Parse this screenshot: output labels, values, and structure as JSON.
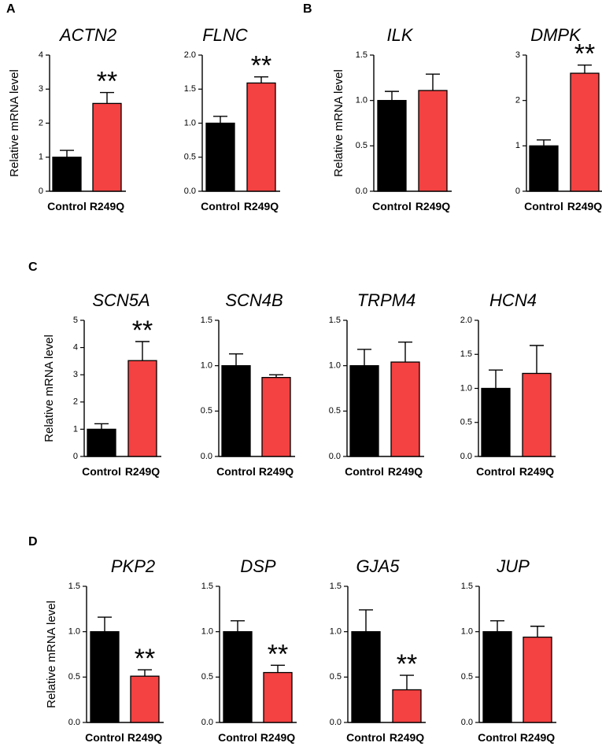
{
  "colors": {
    "control": "#000000",
    "r249q": "#f44141",
    "axis": "#000000"
  },
  "panels": [
    "A",
    "B",
    "C",
    "D"
  ],
  "ylabel": "Relative mRNA level",
  "chart_data": [
    {
      "type": "bar",
      "panel": "A",
      "title": "ACTN2",
      "categories": [
        "Control",
        "R249Q"
      ],
      "values": [
        1.0,
        2.58
      ],
      "errors": [
        0.2,
        0.32
      ],
      "ylim": [
        0,
        4
      ],
      "yticks": [
        "0",
        "1",
        "2",
        "3",
        "4"
      ],
      "ylabel": "Relative mRNA level",
      "significance": [
        "",
        "**"
      ]
    },
    {
      "type": "bar",
      "panel": "A",
      "title": "FLNC",
      "categories": [
        "Control",
        "R249Q"
      ],
      "values": [
        1.0,
        1.59
      ],
      "errors": [
        0.1,
        0.09
      ],
      "ylim": [
        0,
        2
      ],
      "yticks": [
        "0.0",
        "0.5",
        "1.0",
        "1.5",
        "2.0"
      ],
      "ylabel": "",
      "significance": [
        "",
        "**"
      ]
    },
    {
      "type": "bar",
      "panel": "B",
      "title": "ILK",
      "categories": [
        "Control",
        "R249Q"
      ],
      "values": [
        1.0,
        1.11
      ],
      "errors": [
        0.1,
        0.18
      ],
      "ylim": [
        0,
        1.5
      ],
      "yticks": [
        "0.0",
        "0.5",
        "1.0",
        "1.5"
      ],
      "ylabel": "Relative mRNA level",
      "significance": [
        "",
        ""
      ]
    },
    {
      "type": "bar",
      "panel": "B",
      "title": "DMPK",
      "categories": [
        "Control",
        "R249Q"
      ],
      "values": [
        1.0,
        2.6
      ],
      "errors": [
        0.13,
        0.18
      ],
      "ylim": [
        0,
        3
      ],
      "yticks": [
        "0",
        "1",
        "2",
        "3"
      ],
      "ylabel": "",
      "significance": [
        "",
        "**"
      ]
    },
    {
      "type": "bar",
      "panel": "C",
      "title": "SCN5A",
      "categories": [
        "Control",
        "R249Q"
      ],
      "values": [
        1.0,
        3.52
      ],
      "errors": [
        0.2,
        0.7
      ],
      "ylim": [
        0,
        5
      ],
      "yticks": [
        "0",
        "1",
        "2",
        "3",
        "4",
        "5"
      ],
      "ylabel": "Relative mRNA level",
      "significance": [
        "",
        "**"
      ]
    },
    {
      "type": "bar",
      "panel": "C",
      "title": "SCN4B",
      "categories": [
        "Control",
        "R249Q"
      ],
      "values": [
        1.0,
        0.87
      ],
      "errors": [
        0.13,
        0.03
      ],
      "ylim": [
        0,
        1.5
      ],
      "yticks": [
        "0.0",
        "0.5",
        "1.0",
        "1.5"
      ],
      "ylabel": "",
      "significance": [
        "",
        ""
      ]
    },
    {
      "type": "bar",
      "panel": "C",
      "title": "TRPM4",
      "categories": [
        "Control",
        "R249Q"
      ],
      "values": [
        1.0,
        1.04
      ],
      "errors": [
        0.18,
        0.22
      ],
      "ylim": [
        0,
        1.5
      ],
      "yticks": [
        "0.0",
        "0.5",
        "1.0",
        "1.5"
      ],
      "ylabel": "",
      "significance": [
        "",
        ""
      ]
    },
    {
      "type": "bar",
      "panel": "C",
      "title": "HCN4",
      "categories": [
        "Control",
        "R249Q"
      ],
      "values": [
        1.0,
        1.22
      ],
      "errors": [
        0.27,
        0.41
      ],
      "ylim": [
        0,
        2
      ],
      "yticks": [
        "0.0",
        "0.5",
        "1.0",
        "1.5",
        "2.0"
      ],
      "ylabel": "",
      "significance": [
        "",
        ""
      ]
    },
    {
      "type": "bar",
      "panel": "D",
      "title": "PKP2",
      "categories": [
        "Control",
        "R249Q"
      ],
      "values": [
        1.0,
        0.51
      ],
      "errors": [
        0.16,
        0.07
      ],
      "ylim": [
        0,
        1.5
      ],
      "yticks": [
        "0.0",
        "0.5",
        "1.0",
        "1.5"
      ],
      "ylabel": "Relative mRNA level",
      "significance": [
        "",
        "**"
      ]
    },
    {
      "type": "bar",
      "panel": "D",
      "title": "DSP",
      "categories": [
        "Control",
        "R249Q"
      ],
      "values": [
        1.0,
        0.55
      ],
      "errors": [
        0.12,
        0.08
      ],
      "ylim": [
        0,
        1.5
      ],
      "yticks": [
        "0.0",
        "0.5",
        "1.0",
        "1.5"
      ],
      "ylabel": "",
      "significance": [
        "",
        "**"
      ]
    },
    {
      "type": "bar",
      "panel": "D",
      "title": "GJA5",
      "categories": [
        "Control",
        "R249Q"
      ],
      "values": [
        1.0,
        0.36
      ],
      "errors": [
        0.24,
        0.16
      ],
      "ylim": [
        0,
        1.5
      ],
      "yticks": [
        "0.0",
        "0.5",
        "1.0",
        "1.5"
      ],
      "ylabel": "",
      "significance": [
        "",
        "**"
      ]
    },
    {
      "type": "bar",
      "panel": "D",
      "title": "JUP",
      "categories": [
        "Control",
        "R249Q"
      ],
      "values": [
        1.0,
        0.94
      ],
      "errors": [
        0.12,
        0.12
      ],
      "ylim": [
        0,
        1.5
      ],
      "yticks": [
        "0.0",
        "0.5",
        "1.0",
        "1.5"
      ],
      "ylabel": "",
      "significance": [
        "",
        ""
      ]
    }
  ]
}
